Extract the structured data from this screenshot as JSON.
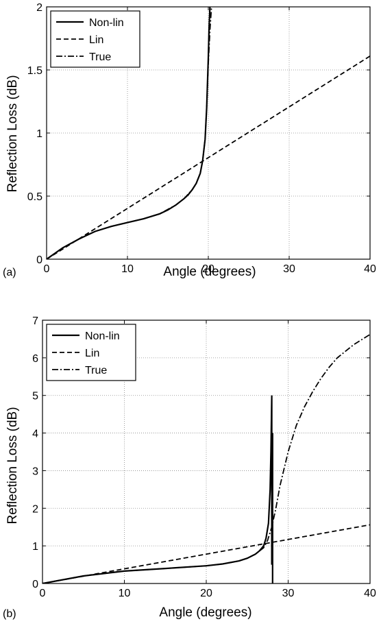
{
  "chart_data": [
    {
      "type": "line",
      "panel_label": "(a)",
      "xlabel": "Angle (degrees)",
      "ylabel": "Reflection Loss (dB)",
      "xlim": [
        0,
        40
      ],
      "ylim": [
        0,
        2
      ],
      "xticks": [
        "0",
        "10",
        "20",
        "30",
        "40"
      ],
      "yticks": [
        "0",
        "0.5",
        "1",
        "1.5",
        "2"
      ],
      "grid": true,
      "legend_position": "top-left",
      "series": [
        {
          "name": "Non-lin",
          "style": "solid",
          "x": [
            0,
            2,
            4,
            6,
            8,
            10,
            12,
            14,
            15,
            16,
            17,
            17.5,
            18,
            18.5,
            19,
            19.3,
            19.6,
            19.8,
            20.0,
            20.1,
            20.2
          ],
          "y": [
            0,
            0.09,
            0.16,
            0.22,
            0.26,
            0.29,
            0.32,
            0.36,
            0.39,
            0.43,
            0.48,
            0.51,
            0.55,
            0.6,
            0.68,
            0.78,
            0.95,
            1.2,
            1.6,
            1.85,
            2.0
          ]
        },
        {
          "name": "Lin",
          "style": "dashed",
          "x": [
            0,
            40
          ],
          "y": [
            0,
            1.61
          ]
        },
        {
          "name": "True",
          "style": "dashdot",
          "x": [
            0,
            2,
            4,
            6,
            8,
            10,
            12,
            14,
            16,
            17,
            18,
            18.5,
            19,
            19.3,
            19.6,
            19.8,
            20.0,
            20.2,
            20.4
          ],
          "y": [
            0,
            0.09,
            0.16,
            0.22,
            0.26,
            0.29,
            0.32,
            0.36,
            0.43,
            0.48,
            0.55,
            0.6,
            0.68,
            0.78,
            0.95,
            1.2,
            1.55,
            1.82,
            2.0
          ]
        }
      ]
    },
    {
      "type": "line",
      "panel_label": "(b)",
      "xlabel": "Angle (degrees)",
      "ylabel": "Reflection Loss (dB)",
      "xlim": [
        0,
        40
      ],
      "ylim": [
        0,
        7
      ],
      "xticks": [
        "0",
        "10",
        "20",
        "30",
        "40"
      ],
      "yticks": [
        "0",
        "1",
        "2",
        "3",
        "4",
        "5",
        "6",
        "7"
      ],
      "grid": true,
      "legend_position": "top-left",
      "series": [
        {
          "name": "Non-lin",
          "style": "solid",
          "x": [
            0,
            5,
            10,
            15,
            20,
            22,
            24,
            25,
            26,
            26.5,
            27,
            27.3,
            27.6,
            27.8,
            27.9,
            28.0,
            28.0,
            28.1,
            28.1
          ],
          "y": [
            0,
            0.2,
            0.33,
            0.4,
            0.47,
            0.52,
            0.6,
            0.67,
            0.78,
            0.87,
            1.0,
            1.2,
            1.6,
            2.5,
            3.5,
            5.0,
            0.5,
            4.0,
            0
          ]
        },
        {
          "name": "Lin",
          "style": "dashed",
          "x": [
            0,
            40
          ],
          "y": [
            0,
            1.56
          ]
        },
        {
          "name": "True",
          "style": "dashdot",
          "x": [
            0,
            5,
            10,
            15,
            20,
            22,
            24,
            25,
            26,
            27,
            27.5,
            28,
            28.5,
            29,
            30,
            31,
            32,
            33,
            34,
            35,
            36,
            38,
            40
          ],
          "y": [
            0,
            0.2,
            0.33,
            0.4,
            0.47,
            0.52,
            0.6,
            0.67,
            0.78,
            0.95,
            1.15,
            1.5,
            2.0,
            2.6,
            3.5,
            4.2,
            4.7,
            5.1,
            5.45,
            5.75,
            6.0,
            6.35,
            6.62
          ]
        }
      ]
    }
  ]
}
